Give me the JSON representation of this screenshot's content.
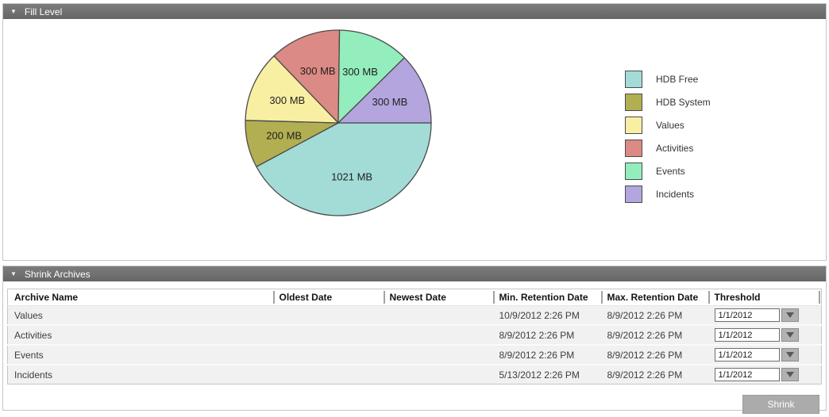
{
  "colors": {
    "panel_header_bg": "#6f6f6f",
    "panel_header_text": "#ffffff",
    "panel_border": "#c6c6c6",
    "table_row_bg": "#f1f1f1",
    "button_bg": "#ababab",
    "button_text": "#fdfdfd",
    "slice_border": "#4a4a4a"
  },
  "fill_level": {
    "title": "Fill Level",
    "collapse_icon": "▼"
  },
  "chart_data": {
    "type": "pie",
    "title": "Fill Level",
    "unit": "MB",
    "start_angle_deg": 90,
    "direction": "clockwise",
    "legend_position": "right",
    "slice_border_color": "#4a4a4a",
    "label_radius_ratio": 0.6,
    "series": [
      {
        "name": "HDB Free",
        "value": 1021,
        "label": "1021 MB",
        "color": "#a3dcd7"
      },
      {
        "name": "HDB System",
        "value": 200,
        "label": "200 MB",
        "color": "#b2af52"
      },
      {
        "name": "Values",
        "value": 300,
        "label": "300 MB",
        "color": "#f9efa3"
      },
      {
        "name": "Activities",
        "value": 300,
        "label": "300 MB",
        "color": "#dc8a85"
      },
      {
        "name": "Events",
        "value": 300,
        "label": "300 MB",
        "color": "#93edbc"
      },
      {
        "name": "Incidents",
        "value": 300,
        "label": "300 MB",
        "color": "#b4a5de"
      }
    ]
  },
  "shrink_archives": {
    "title": "Shrink Archives",
    "collapse_icon": "▼",
    "shrink_button_label": "Shrink",
    "table": {
      "headers": [
        "Archive Name",
        "Oldest Date",
        "Newest Date",
        "Min. Retention Date",
        "Max. Retention Date",
        "Threshold"
      ],
      "rows": [
        {
          "archive_name": "Values",
          "oldest_date": "",
          "newest_date": "",
          "min_retention_date": "10/9/2012 2:26 PM",
          "max_retention_date": "8/9/2012 2:26 PM",
          "threshold": "1/1/2012"
        },
        {
          "archive_name": "Activities",
          "oldest_date": "",
          "newest_date": "",
          "min_retention_date": "8/9/2012 2:26 PM",
          "max_retention_date": "8/9/2012 2:26 PM",
          "threshold": "1/1/2012"
        },
        {
          "archive_name": "Events",
          "oldest_date": "",
          "newest_date": "",
          "min_retention_date": "8/9/2012 2:26 PM",
          "max_retention_date": "8/9/2012 2:26 PM",
          "threshold": "1/1/2012"
        },
        {
          "archive_name": "Incidents",
          "oldest_date": "",
          "newest_date": "",
          "min_retention_date": "5/13/2012 2:26 PM",
          "max_retention_date": "8/9/2012 2:26 PM",
          "threshold": "1/1/2012"
        }
      ]
    }
  }
}
